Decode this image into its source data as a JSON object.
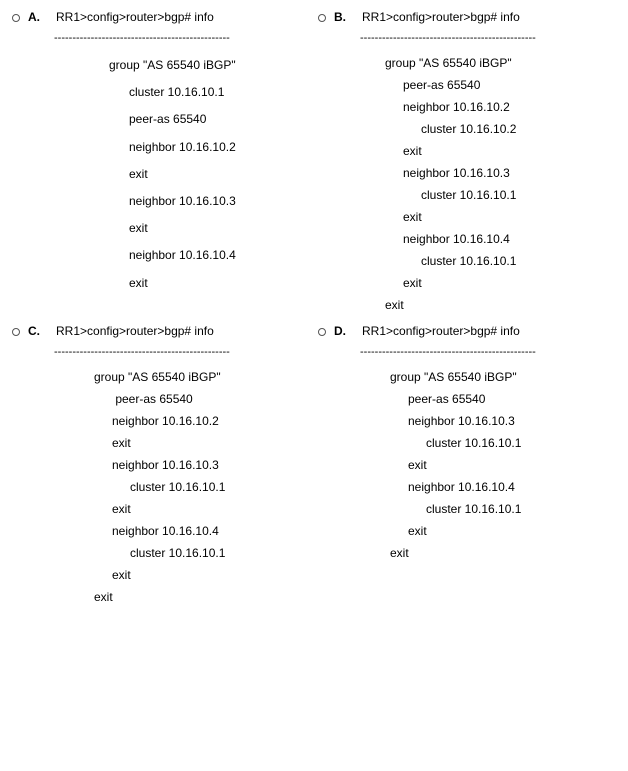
{
  "options": [
    {
      "key": "A",
      "label": "A.",
      "prompt": "RR1>config>router>bgp# info",
      "divider": "------------------------------------------------",
      "indent_base": 55,
      "indent_step": 20,
      "spacing": "loose",
      "lines": [
        {
          "indent": 0,
          "text": "group \"AS 65540 iBGP\""
        },
        {
          "indent": 1,
          "text": "cluster 10.16.10.1"
        },
        {
          "indent": 1,
          "text": "peer-as 65540"
        },
        {
          "indent": 1,
          "text": "neighbor 10.16.10.2"
        },
        {
          "indent": 1,
          "text": "exit"
        },
        {
          "indent": 1,
          "text": "neighbor 10.16.10.3"
        },
        {
          "indent": 1,
          "text": "exit"
        },
        {
          "indent": 1,
          "text": "neighbor 10.16.10.4"
        },
        {
          "indent": 1,
          "text": "exit"
        }
      ]
    },
    {
      "key": "B",
      "label": "B.",
      "prompt": "RR1>config>router>bgp# info",
      "divider": "------------------------------------------------",
      "indent_base": 25,
      "indent_step": 18,
      "spacing": "tight",
      "lines": [
        {
          "indent": 0,
          "text": "group \"AS 65540 iBGP\""
        },
        {
          "indent": 1,
          "text": "peer-as 65540"
        },
        {
          "indent": 1,
          "text": "neighbor 10.16.10.2"
        },
        {
          "indent": 2,
          "text": "cluster 10.16.10.2"
        },
        {
          "indent": 1,
          "text": "exit"
        },
        {
          "indent": 1,
          "text": "neighbor 10.16.10.3"
        },
        {
          "indent": 2,
          "text": "cluster 10.16.10.1"
        },
        {
          "indent": 1,
          "text": "exit"
        },
        {
          "indent": 1,
          "text": "neighbor 10.16.10.4"
        },
        {
          "indent": 2,
          "text": "cluster 10.16.10.1"
        },
        {
          "indent": 1,
          "text": "exit"
        },
        {
          "indent": 0,
          "text": "exit"
        }
      ]
    },
    {
      "key": "C",
      "label": "C.",
      "prompt": "RR1>config>router>bgp# info",
      "divider": "------------------------------------------------",
      "indent_base": 40,
      "indent_step": 18,
      "spacing": "tight",
      "lines": [
        {
          "indent": 0,
          "text": "group \"AS 65540 iBGP\""
        },
        {
          "indent": 1,
          "text": " peer-as 65540"
        },
        {
          "indent": 1,
          "text": "neighbor 10.16.10.2"
        },
        {
          "indent": 1,
          "text": "exit"
        },
        {
          "indent": 1,
          "text": "neighbor 10.16.10.3"
        },
        {
          "indent": 2,
          "text": "cluster 10.16.10.1"
        },
        {
          "indent": 1,
          "text": "exit"
        },
        {
          "indent": 1,
          "text": "neighbor 10.16.10.4"
        },
        {
          "indent": 2,
          "text": "cluster 10.16.10.1"
        },
        {
          "indent": 1,
          "text": "exit"
        },
        {
          "indent": 0,
          "text": "exit"
        }
      ]
    },
    {
      "key": "D",
      "label": "D.",
      "prompt": "RR1>config>router>bgp# info",
      "divider": "------------------------------------------------",
      "indent_base": 30,
      "indent_step": 18,
      "spacing": "tight",
      "lines": [
        {
          "indent": 0,
          "text": "group \"AS 65540 iBGP\""
        },
        {
          "indent": 1,
          "text": "peer-as 65540"
        },
        {
          "indent": 1,
          "text": "neighbor 10.16.10.3"
        },
        {
          "indent": 2,
          "text": "cluster 10.16.10.1"
        },
        {
          "indent": 1,
          "text": "exit"
        },
        {
          "indent": 1,
          "text": "neighbor 10.16.10.4"
        },
        {
          "indent": 2,
          "text": "cluster 10.16.10.1"
        },
        {
          "indent": 1,
          "text": "exit"
        },
        {
          "indent": 0,
          "text": "exit"
        }
      ]
    }
  ]
}
